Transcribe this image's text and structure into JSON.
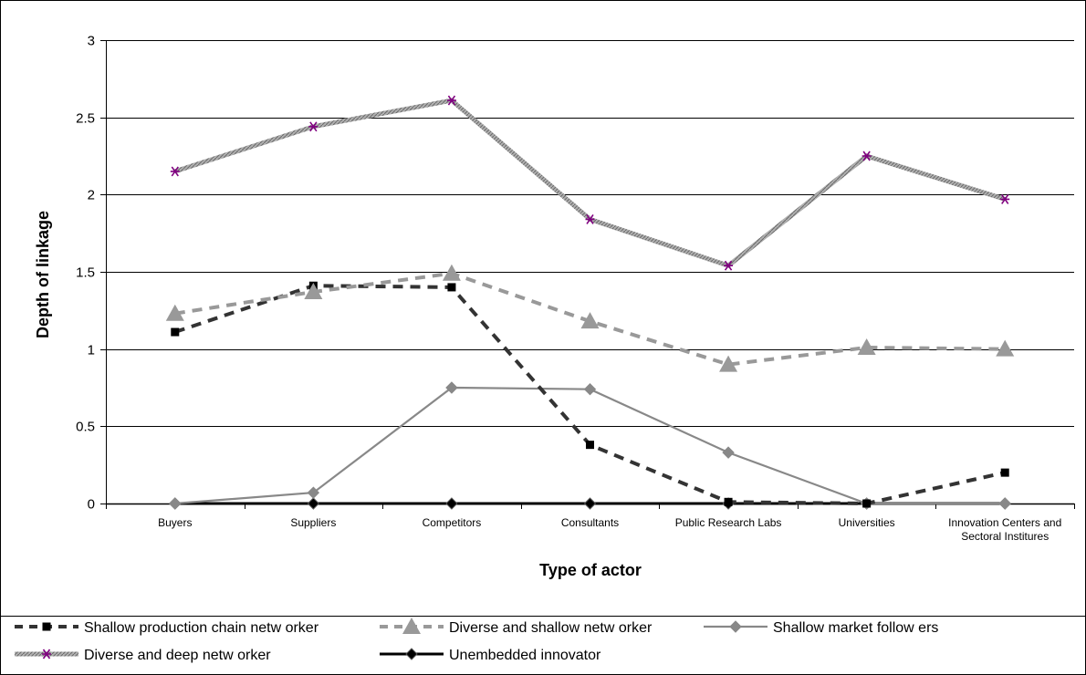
{
  "chart_data": {
    "type": "line",
    "title": "",
    "xlabel": "Type of actor",
    "ylabel": "Depth of linkage",
    "ylim": [
      0,
      3
    ],
    "yticks": [
      "0",
      "0.5",
      "1",
      "1.5",
      "2",
      "2.5",
      "3"
    ],
    "grid": "horizontal",
    "legend_position": "bottom",
    "categories": [
      [
        "Buyers"
      ],
      [
        "Suppliers"
      ],
      [
        "Competitors"
      ],
      [
        "Consultants"
      ],
      [
        "Public Research Labs"
      ],
      [
        "Universities"
      ],
      [
        "Innovation Centers and",
        "Sectoral Institures"
      ]
    ],
    "series": [
      {
        "name": "Shallow  production chain netw orker",
        "values": [
          1.11,
          1.41,
          1.4,
          0.38,
          0.01,
          0.0,
          0.2
        ],
        "color": "#333333",
        "line": "dashed",
        "marker": "square"
      },
      {
        "name": "Diverse and shallow  netw orker",
        "values": [
          1.23,
          1.37,
          1.49,
          1.18,
          0.9,
          1.01,
          1.0
        ],
        "color": "#999999",
        "line": "dashed",
        "marker": "triangle"
      },
      {
        "name": "Shallow  market follow ers",
        "values": [
          0.0,
          0.07,
          0.75,
          0.74,
          0.33,
          0.0,
          0.0
        ],
        "color": "#888888",
        "line": "solid",
        "marker": "diamond"
      },
      {
        "name": "Diverse and deep netw orker",
        "values": [
          2.15,
          2.44,
          2.61,
          1.84,
          1.54,
          2.25,
          1.97
        ],
        "color": "#999999",
        "line": "textured",
        "marker": "asterisk",
        "marker_color": "#800080"
      },
      {
        "name": "Unembedded innovator",
        "values": [
          0,
          0,
          0,
          0,
          0,
          0,
          0
        ],
        "color": "#000000",
        "line": "solid",
        "marker": "diamond"
      }
    ]
  }
}
